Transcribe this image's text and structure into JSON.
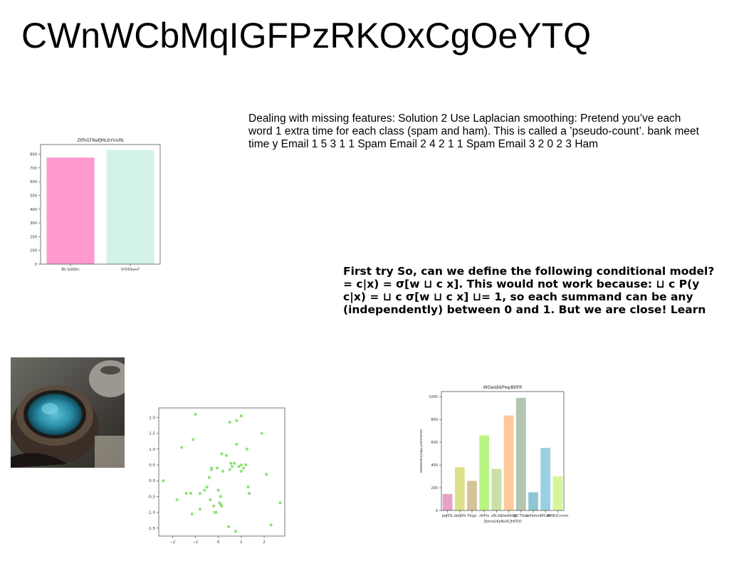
{
  "slide": {
    "title": "CWnWCbMqIGFPzRKOxCgOeYTQ",
    "paragraph1": "Dealing with missing features: Solution 2 Use Laplacian smoothing: Pretend you’ve each word 1 extra time for each class (spam and ham). This is called a ’pseudo-count’. bank meet time y Email 1 5 3 1 1 Spam Email 2 4 2 1 1 Spam Email 3 2 0 2 3 Ham",
    "paragraph2": "First try So, can we define the following conditional model? = c|x) = σ[w ⊔ c x]. This would not work because: ⊔ c P(y c|x) = ⊔ c σ[w ⊔ c x] ⊔= 1, so each summand can be any (independently) between 0 and 1. But we are close! Learn"
  },
  "chart_data": [
    {
      "type": "bar",
      "title": "ZtfhGTNafjMLbYVxIlb",
      "xlabel": "",
      "ylabel": "",
      "categories": [
        "Bz GdQkc",
        "VrODbavY"
      ],
      "values": [
        775,
        830
      ],
      "colors": [
        "#ff99d0",
        "#d3f3ea"
      ],
      "ylim": [
        0,
        870
      ],
      "yticks": [
        0,
        100,
        200,
        300,
        400,
        500,
        600,
        700,
        800
      ]
    },
    {
      "type": "scatter",
      "title": "",
      "xlabel": "",
      "ylabel": "",
      "color": "#90e07a",
      "xlim": [
        -2.6,
        2.9
      ],
      "ylim": [
        -1.75,
        2.3
      ],
      "xticks": [
        -2,
        -1,
        0,
        1,
        2
      ],
      "yticks": [
        -1.5,
        -1.0,
        -0.5,
        0.0,
        0.5,
        1.0,
        1.5,
        2.0
      ],
      "points": [
        [
          -2.4,
          0.0
        ],
        [
          -1.8,
          -0.6
        ],
        [
          -1.6,
          1.05
        ],
        [
          -1.4,
          -0.4
        ],
        [
          -1.2,
          -0.4
        ],
        [
          -1.15,
          -1.05
        ],
        [
          -1.1,
          1.3
        ],
        [
          -1.0,
          2.1
        ],
        [
          -0.8,
          -0.9
        ],
        [
          -0.8,
          -0.4
        ],
        [
          -0.6,
          -0.3
        ],
        [
          -0.5,
          -0.2
        ],
        [
          -0.4,
          0.1
        ],
        [
          -0.35,
          -0.6
        ],
        [
          -0.3,
          0.35
        ],
        [
          -0.3,
          0.4
        ],
        [
          -0.2,
          -0.8
        ],
        [
          -0.15,
          -1.0
        ],
        [
          -0.1,
          -1.0
        ],
        [
          -0.05,
          0.4
        ],
        [
          0.0,
          -0.3
        ],
        [
          0.05,
          -0.7
        ],
        [
          0.1,
          -0.75
        ],
        [
          0.1,
          -0.5
        ],
        [
          0.15,
          0.85
        ],
        [
          0.15,
          -0.8
        ],
        [
          0.2,
          0.3
        ],
        [
          0.35,
          0.8
        ],
        [
          0.45,
          -1.45
        ],
        [
          0.5,
          0.35
        ],
        [
          0.5,
          1.85
        ],
        [
          0.55,
          0.55
        ],
        [
          0.6,
          0.45
        ],
        [
          0.7,
          0.55
        ],
        [
          0.75,
          -1.6
        ],
        [
          0.8,
          1.15
        ],
        [
          0.8,
          1.9
        ],
        [
          0.9,
          0.45
        ],
        [
          1.0,
          2.05
        ],
        [
          1.0,
          0.3
        ],
        [
          1.0,
          0.5
        ],
        [
          1.1,
          0.4
        ],
        [
          1.2,
          0.5
        ],
        [
          1.25,
          1.0
        ],
        [
          1.3,
          -0.2
        ],
        [
          1.35,
          -0.4
        ],
        [
          1.9,
          1.5
        ],
        [
          2.1,
          0.2
        ],
        [
          2.3,
          -1.4
        ],
        [
          2.7,
          -0.7
        ]
      ]
    },
    {
      "type": "bar",
      "title": "WOaIsbkPwpBtIFR",
      "xlabel": "ZbmxUKoNsXCJhKTJO",
      "ylabel": "koeNkNOjSdJZZAkvnfRN",
      "categories": [
        "pqPDL",
        "defjKN",
        "Fkigz",
        "zHFts",
        "uRLXb",
        "DwAKdg",
        "WCTSda",
        "tsPafsm",
        "KPLdd",
        "MHEzCnmm"
      ],
      "values": [
        145,
        380,
        260,
        660,
        365,
        835,
        990,
        160,
        550,
        300
      ],
      "colors": [
        "#e9a2c7",
        "#dde189",
        "#d4c398",
        "#b8f582",
        "#c8e0a5",
        "#fec99b",
        "#b2c5b2",
        "#8fc6d4",
        "#99d0e1",
        "#d7f69b"
      ],
      "ylim": [
        0,
        1045
      ],
      "yticks": [
        0,
        200,
        400,
        600,
        800,
        1000
      ]
    }
  ],
  "photo": {
    "subject": "tea-cup-with-teapot"
  }
}
